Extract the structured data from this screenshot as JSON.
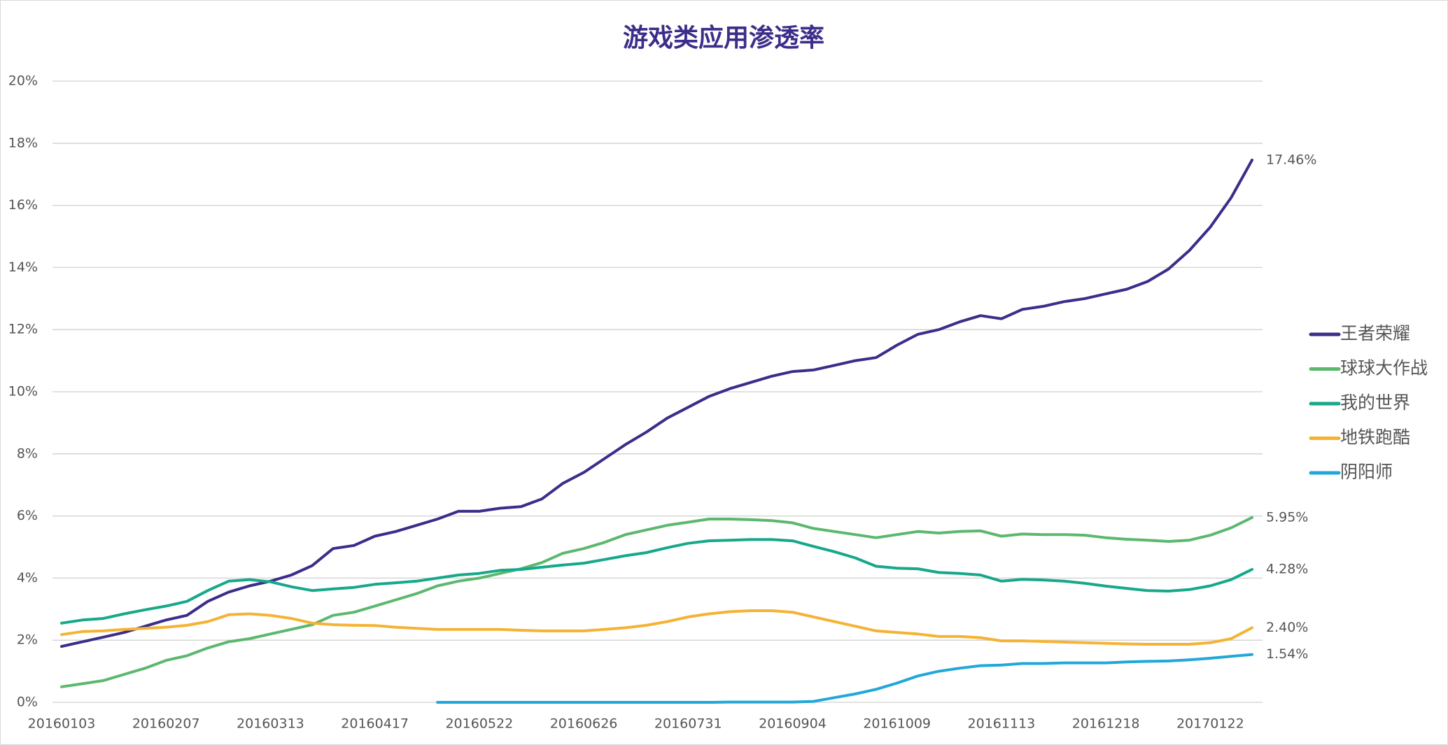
{
  "chart_data": {
    "type": "line",
    "title": "游戏类应用渗透率",
    "categories": [
      "20160103",
      null,
      null,
      null,
      null,
      "20160207",
      null,
      null,
      null,
      null,
      "20160313",
      null,
      null,
      null,
      null,
      "20160417",
      null,
      null,
      null,
      null,
      "20160522",
      null,
      null,
      null,
      null,
      "20160626",
      null,
      null,
      null,
      null,
      "20160731",
      null,
      null,
      null,
      null,
      "20160904",
      null,
      null,
      null,
      null,
      "20161009",
      null,
      null,
      null,
      null,
      "20161113",
      null,
      null,
      null,
      null,
      "20161218",
      null,
      null,
      null,
      null,
      "20170122",
      null,
      null
    ],
    "series": [
      {
        "name": "王者荣耀",
        "color": "#3b2d8a",
        "values": [
          1.8,
          1.95,
          2.1,
          2.25,
          2.45,
          2.65,
          2.8,
          3.25,
          3.55,
          3.75,
          3.9,
          4.1,
          4.4,
          4.95,
          5.05,
          5.35,
          5.5,
          5.7,
          5.9,
          6.15,
          6.15,
          6.25,
          6.3,
          6.55,
          7.05,
          7.4,
          7.85,
          8.3,
          8.7,
          9.15,
          9.5,
          9.85,
          10.1,
          10.3,
          10.5,
          10.65,
          10.7,
          10.85,
          11.0,
          11.1,
          11.5,
          11.85,
          12.0,
          12.25,
          12.45,
          12.35,
          12.65,
          12.75,
          12.9,
          13.0,
          13.15,
          13.3,
          13.55,
          13.95,
          14.55,
          15.3,
          16.25,
          17.46
        ],
        "value_labels": [
          null,
          null,
          null,
          null,
          null,
          null,
          null,
          null,
          null,
          null,
          null,
          null,
          null,
          null,
          null,
          null,
          null,
          null,
          null,
          null,
          null,
          null,
          null,
          null,
          null,
          null,
          null,
          null,
          null,
          null,
          null,
          null,
          null,
          null,
          null,
          null,
          null,
          null,
          null,
          null,
          null,
          null,
          null,
          null,
          null,
          null,
          null,
          null,
          null,
          null,
          null,
          null,
          null,
          null,
          null,
          null,
          null,
          "17.46%"
        ]
      },
      {
        "name": "球球大作战",
        "color": "#5cb86f",
        "values": [
          0.5,
          0.6,
          0.7,
          0.9,
          1.1,
          1.35,
          1.5,
          1.75,
          1.95,
          2.05,
          2.2,
          2.35,
          2.5,
          2.8,
          2.9,
          3.1,
          3.3,
          3.5,
          3.75,
          3.9,
          4.0,
          4.15,
          4.3,
          4.5,
          4.8,
          4.95,
          5.15,
          5.4,
          5.55,
          5.7,
          5.8,
          5.9,
          5.9,
          5.88,
          5.85,
          5.78,
          5.6,
          5.5,
          5.4,
          5.3,
          5.4,
          5.5,
          5.45,
          5.5,
          5.52,
          5.35,
          5.42,
          5.4,
          5.4,
          5.38,
          5.3,
          5.25,
          5.22,
          5.18,
          5.22,
          5.38,
          5.62,
          5.95
        ],
        "value_labels": [
          null,
          null,
          null,
          null,
          null,
          null,
          null,
          null,
          null,
          null,
          null,
          null,
          null,
          null,
          null,
          null,
          null,
          null,
          null,
          null,
          null,
          null,
          null,
          null,
          null,
          null,
          null,
          null,
          null,
          null,
          null,
          null,
          null,
          null,
          null,
          null,
          null,
          null,
          null,
          null,
          null,
          null,
          null,
          null,
          null,
          null,
          null,
          null,
          null,
          null,
          null,
          null,
          null,
          null,
          null,
          null,
          null,
          "5.95%"
        ]
      },
      {
        "name": "我的世界",
        "color": "#17a88a",
        "values": [
          2.55,
          2.65,
          2.7,
          2.85,
          2.98,
          3.1,
          3.25,
          3.6,
          3.9,
          3.95,
          3.88,
          3.72,
          3.6,
          3.65,
          3.7,
          3.8,
          3.85,
          3.9,
          4.0,
          4.1,
          4.15,
          4.25,
          4.28,
          4.35,
          4.42,
          4.48,
          4.6,
          4.72,
          4.82,
          4.98,
          5.12,
          5.2,
          5.22,
          5.24,
          5.24,
          5.2,
          5.02,
          4.85,
          4.65,
          4.38,
          4.32,
          4.3,
          4.18,
          4.15,
          4.1,
          3.9,
          3.96,
          3.94,
          3.9,
          3.83,
          3.74,
          3.67,
          3.6,
          3.58,
          3.63,
          3.75,
          3.95,
          4.28
        ],
        "value_labels": [
          null,
          null,
          null,
          null,
          null,
          null,
          null,
          null,
          null,
          null,
          null,
          null,
          null,
          null,
          null,
          null,
          null,
          null,
          null,
          null,
          null,
          null,
          null,
          null,
          null,
          null,
          null,
          null,
          null,
          null,
          null,
          null,
          null,
          null,
          null,
          null,
          null,
          null,
          null,
          null,
          null,
          null,
          null,
          null,
          null,
          null,
          null,
          null,
          null,
          null,
          null,
          null,
          null,
          null,
          null,
          null,
          null,
          "4.28%"
        ]
      },
      {
        "name": "地铁跑酷",
        "color": "#f5b335",
        "values": [
          2.18,
          2.28,
          2.3,
          2.35,
          2.38,
          2.42,
          2.48,
          2.6,
          2.82,
          2.85,
          2.8,
          2.7,
          2.55,
          2.5,
          2.48,
          2.47,
          2.42,
          2.38,
          2.35,
          2.35,
          2.35,
          2.35,
          2.32,
          2.3,
          2.3,
          2.3,
          2.35,
          2.4,
          2.48,
          2.6,
          2.75,
          2.85,
          2.92,
          2.95,
          2.95,
          2.9,
          2.75,
          2.6,
          2.45,
          2.3,
          2.25,
          2.2,
          2.12,
          2.12,
          2.08,
          1.98,
          1.98,
          1.96,
          1.94,
          1.92,
          1.9,
          1.88,
          1.87,
          1.87,
          1.87,
          1.92,
          2.05,
          2.4
        ],
        "value_labels": [
          null,
          null,
          null,
          null,
          null,
          null,
          null,
          null,
          null,
          null,
          null,
          null,
          null,
          null,
          null,
          null,
          null,
          null,
          null,
          null,
          null,
          null,
          null,
          null,
          null,
          null,
          null,
          null,
          null,
          null,
          null,
          null,
          null,
          null,
          null,
          null,
          null,
          null,
          null,
          null,
          null,
          null,
          null,
          null,
          null,
          null,
          null,
          null,
          null,
          null,
          null,
          null,
          null,
          null,
          null,
          null,
          null,
          "2.40%"
        ]
      },
      {
        "name": "阴阳师",
        "color": "#21a8d8",
        "values": [
          null,
          null,
          null,
          null,
          null,
          null,
          null,
          null,
          null,
          null,
          null,
          null,
          null,
          null,
          null,
          null,
          null,
          null,
          0,
          0,
          0,
          0,
          0,
          0,
          0,
          0,
          0,
          0,
          0,
          0,
          0,
          0,
          0.01,
          0.01,
          0.01,
          0.01,
          0.03,
          0.15,
          0.27,
          0.42,
          0.62,
          0.85,
          1.0,
          1.1,
          1.18,
          1.2,
          1.25,
          1.25,
          1.27,
          1.27,
          1.27,
          1.3,
          1.32,
          1.33,
          1.37,
          1.42,
          1.48,
          1.54
        ],
        "value_labels": [
          null,
          null,
          null,
          null,
          null,
          null,
          null,
          null,
          null,
          null,
          null,
          null,
          null,
          null,
          null,
          null,
          null,
          null,
          null,
          null,
          null,
          null,
          null,
          null,
          null,
          null,
          null,
          null,
          null,
          null,
          null,
          null,
          null,
          null,
          null,
          null,
          null,
          null,
          null,
          null,
          null,
          null,
          null,
          null,
          null,
          null,
          null,
          null,
          null,
          null,
          null,
          null,
          null,
          null,
          null,
          null,
          null,
          "1.54%"
        ]
      }
    ],
    "ylim": [
      0,
      20
    ],
    "yticks": [
      {
        "value": 0,
        "label": "0%"
      },
      {
        "value": 2,
        "label": "2%"
      },
      {
        "value": 4,
        "label": "4%"
      },
      {
        "value": 6,
        "label": "6%"
      },
      {
        "value": 8,
        "label": "8%"
      },
      {
        "value": 10,
        "label": "10%"
      },
      {
        "value": 12,
        "label": "12%"
      },
      {
        "value": 14,
        "label": "14%"
      },
      {
        "value": 16,
        "label": "16%"
      },
      {
        "value": 18,
        "label": "18%"
      },
      {
        "value": 20,
        "label": "20%"
      }
    ],
    "grid": true,
    "legend": "right"
  }
}
